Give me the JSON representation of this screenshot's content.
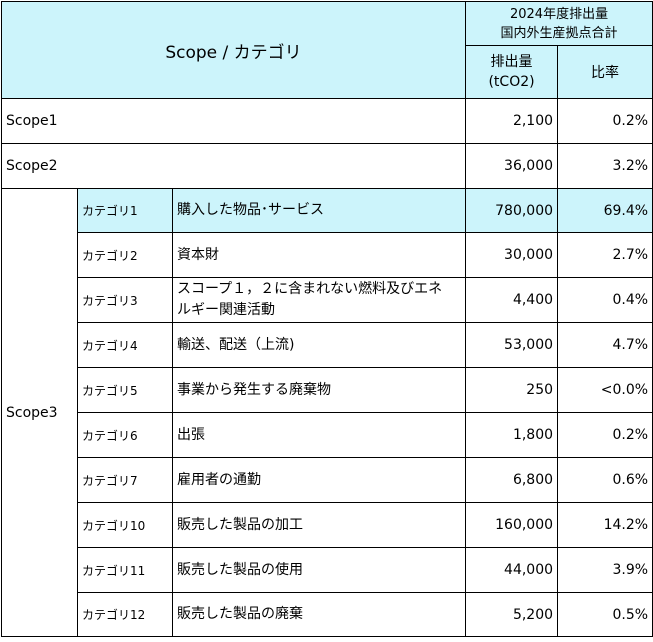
{
  "header": {
    "scope_category": "Scope / カテゴリ",
    "group_title_line1": "2024年度排出量",
    "group_title_line2": "国内外生産拠点合計",
    "emissions_line1": "排出量",
    "emissions_line2": "(tCO2)",
    "ratio": "比率"
  },
  "scope1": {
    "label": "Scope1",
    "emissions": "2,100",
    "ratio": "0.2%"
  },
  "scope2": {
    "label": "Scope2",
    "emissions": "36,000",
    "ratio": "3.2%"
  },
  "scope3": {
    "label": "Scope3",
    "rows": [
      {
        "category": "カテゴリ1",
        "description": "購入した物品･サービス",
        "emissions": "780,000",
        "ratio": "69.4%"
      },
      {
        "category": "カテゴリ2",
        "description": "資本財",
        "emissions": "30,000",
        "ratio": "2.7%"
      },
      {
        "category": "カテゴリ3",
        "description_line1": "スコープ１，２に含まれない燃料及びエネ",
        "description_line2": "ルギー関連活動",
        "emissions": "4,400",
        "ratio": "0.4%"
      },
      {
        "category": "カテゴリ4",
        "description": "輸送、配送（上流)",
        "emissions": "53,000",
        "ratio": "4.7%"
      },
      {
        "category": "カテゴリ5",
        "description": "事業から発生する廃棄物",
        "emissions": "250",
        "ratio": "<0.0%"
      },
      {
        "category": "カテゴリ6",
        "description": "出張",
        "emissions": "1,800",
        "ratio": "0.2%"
      },
      {
        "category": "カテゴリ7",
        "description": "雇用者の通勤",
        "emissions": "6,800",
        "ratio": "0.6%"
      },
      {
        "category": "カテゴリ10",
        "description": "販売した製品の加工",
        "emissions": "160,000",
        "ratio": "14.2%"
      },
      {
        "category": "カテゴリ11",
        "description": "販売した製品の使用",
        "emissions": "44,000",
        "ratio": "3.9%"
      },
      {
        "category": "カテゴリ12",
        "description": "販売した製品の廃棄",
        "emissions": "5,200",
        "ratio": "0.5%"
      }
    ]
  }
}
